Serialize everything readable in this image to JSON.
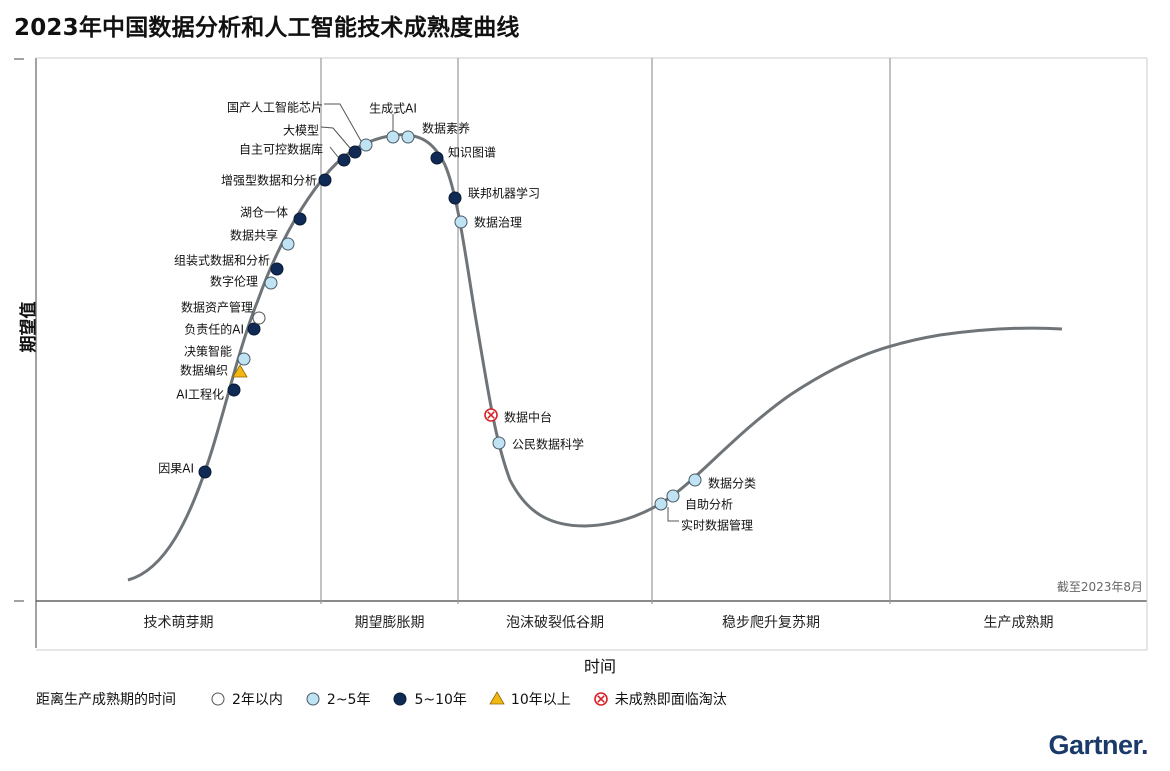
{
  "title": "2023年中国数据分析和人工智能技术成熟度曲线",
  "as_of": "截至2023年8月",
  "brand": "Gartner.",
  "colors": {
    "curve": "#6e7478",
    "dark": "#0f2a55",
    "light": "#bfe3f2",
    "white": "#ffffff",
    "yellow": "#f3b713",
    "red": "#d6232a",
    "grid": "#9a9a9a"
  },
  "chart_data": {
    "type": "scatter",
    "title": "2023年中国数据分析和人工智能技术成熟度曲线",
    "ylabel": "期望值",
    "xlabel": "时间",
    "phases": [
      "技术萌芽期",
      "期望膨胀期",
      "泡沫破裂低谷期",
      "稳步爬升复苏期",
      "生产成熟期"
    ],
    "legend": {
      "title": "距离生产成熟期的时间",
      "items": [
        {
          "key": "lt2",
          "label": "2年以内",
          "marker": "white-circle"
        },
        {
          "key": "2to5",
          "label": "2~5年",
          "marker": "light-circle"
        },
        {
          "key": "5to10",
          "label": "5~10年",
          "marker": "dark-circle"
        },
        {
          "key": "gt10",
          "label": "10年以上",
          "marker": "yellow-triangle"
        },
        {
          "key": "obsolete",
          "label": "未成熟即面临淘汰",
          "marker": "red-x-circle"
        }
      ]
    },
    "points": [
      {
        "name": "因果AI",
        "cat": "5to10",
        "phase": "技术萌芽期"
      },
      {
        "name": "AI工程化",
        "cat": "5to10",
        "phase": "技术萌芽期"
      },
      {
        "name": "数据编织",
        "cat": "gt10",
        "phase": "技术萌芽期"
      },
      {
        "name": "决策智能",
        "cat": "2to5",
        "phase": "技术萌芽期"
      },
      {
        "name": "负责任的AI",
        "cat": "5to10",
        "phase": "技术萌芽期"
      },
      {
        "name": "数据资产管理",
        "cat": "lt2",
        "phase": "技术萌芽期"
      },
      {
        "name": "数字伦理",
        "cat": "2to5",
        "phase": "技术萌芽期"
      },
      {
        "name": "组装式数据和分析",
        "cat": "5to10",
        "phase": "技术萌芽期"
      },
      {
        "name": "数据共享",
        "cat": "2to5",
        "phase": "技术萌芽期"
      },
      {
        "name": "湖仓一体",
        "cat": "5to10",
        "phase": "技术萌芽期"
      },
      {
        "name": "增强型数据和分析",
        "cat": "5to10",
        "phase": "期望膨胀期"
      },
      {
        "name": "自主可控数据库",
        "cat": "5to10",
        "phase": "期望膨胀期"
      },
      {
        "name": "大模型",
        "cat": "5to10",
        "phase": "期望膨胀期"
      },
      {
        "name": "国产人工智能芯片",
        "cat": "2to5",
        "phase": "期望膨胀期"
      },
      {
        "name": "生成式AI",
        "cat": "2to5",
        "phase": "期望膨胀期"
      },
      {
        "name": "数据素养",
        "cat": "2to5",
        "phase": "期望膨胀期"
      },
      {
        "name": "知识图谱",
        "cat": "5to10",
        "phase": "期望膨胀期"
      },
      {
        "name": "联邦机器学习",
        "cat": "5to10",
        "phase": "期望膨胀期"
      },
      {
        "name": "数据治理",
        "cat": "2to5",
        "phase": "泡沫破裂低谷期"
      },
      {
        "name": "数据中台",
        "cat": "obsolete",
        "phase": "泡沫破裂低谷期"
      },
      {
        "name": "公民数据科学",
        "cat": "2to5",
        "phase": "泡沫破裂低谷期"
      },
      {
        "name": "实时数据管理",
        "cat": "2to5",
        "phase": "稳步爬升复苏期"
      },
      {
        "name": "自助分析",
        "cat": "2to5",
        "phase": "稳步爬升复苏期"
      },
      {
        "name": "数据分类",
        "cat": "2to5",
        "phase": "稳步爬升复苏期"
      }
    ]
  }
}
